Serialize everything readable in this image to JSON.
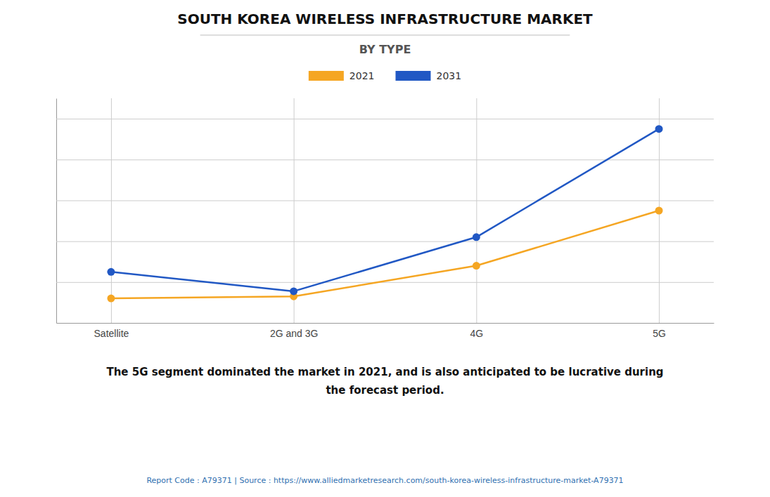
{
  "chart_data": {
    "type": "line",
    "title": "SOUTH KOREA WIRELESS INFRASTRUCTURE MARKET",
    "subtitle": "BY TYPE",
    "categories": [
      "Satellite",
      "2G and 3G",
      "4G",
      "5G"
    ],
    "series": [
      {
        "name": "2021",
        "color": "#F5A623",
        "values": [
          1.2,
          1.3,
          2.8,
          5.5
        ]
      },
      {
        "name": "2031",
        "color": "#2158C4",
        "values": [
          2.5,
          1.55,
          4.2,
          9.5
        ]
      }
    ],
    "ylim": [
      0,
      11.0
    ],
    "yticks": [
      0,
      2,
      4,
      6,
      8,
      10
    ],
    "grid": true,
    "legend": "top",
    "tick_labels": "x",
    "marker": "circle",
    "line_style": "solid",
    "annotations": [
      "The 5G segment dominated the market in 2021, and is also anticipated to be lucrative during\nthe forecast period.",
      "Report Code : A79371  |  Source : https://www.alliedmarketresearch.com/south-korea-wireless-infrastructure-market-A79371"
    ]
  }
}
